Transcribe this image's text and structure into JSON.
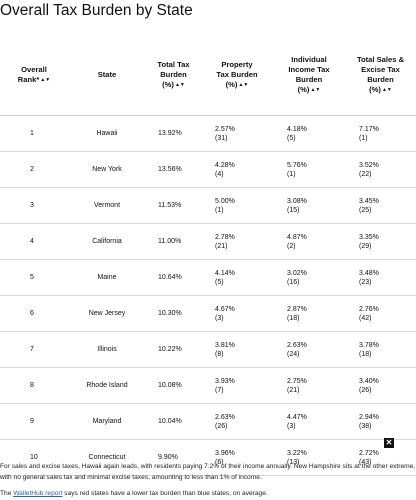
{
  "title": "Overall Tax Burden by State",
  "headers": {
    "rank": [
      "Overall",
      "Rank*"
    ],
    "state": "State",
    "total": [
      "Total Tax",
      "Burden",
      "(%)"
    ],
    "property": [
      "Property",
      "Tax Burden",
      "(%)"
    ],
    "income": [
      "Individual",
      "Income Tax",
      "Burden",
      "(%)"
    ],
    "sales": [
      "Total Sales &",
      "Excise Tax",
      "Burden",
      "(%)"
    ],
    "sort_icon": "sort-icon"
  },
  "rows": [
    {
      "rank": "1",
      "state": "Hawaii",
      "total": "13.92%",
      "property": "2.57%",
      "property_rank": "(31)",
      "income": "4.18%",
      "income_rank": "(5)",
      "sales": "7.17%",
      "sales_rank": "(1)"
    },
    {
      "rank": "2",
      "state": "New York",
      "total": "13.56%",
      "property": "4.28%",
      "property_rank": "(4)",
      "income": "5.76%",
      "income_rank": "(1)",
      "sales": "3.52%",
      "sales_rank": "(22)"
    },
    {
      "rank": "3",
      "state": "Vermont",
      "total": "11.53%",
      "property": "5.00%",
      "property_rank": "(1)",
      "income": "3.08%",
      "income_rank": "(15)",
      "sales": "3.45%",
      "sales_rank": "(25)"
    },
    {
      "rank": "4",
      "state": "California",
      "total": "11.00%",
      "property": "2.78%",
      "property_rank": "(21)",
      "income": "4.87%",
      "income_rank": "(2)",
      "sales": "3.35%",
      "sales_rank": "(29)"
    },
    {
      "rank": "5",
      "state": "Maine",
      "total": "10.64%",
      "property": "4.14%",
      "property_rank": "(5)",
      "income": "3.02%",
      "income_rank": "(16)",
      "sales": "3.48%",
      "sales_rank": "(23)"
    },
    {
      "rank": "6",
      "state": "New Jersey",
      "total": "10.30%",
      "property": "4.67%",
      "property_rank": "(3)",
      "income": "2.87%",
      "income_rank": "(18)",
      "sales": "2.76%",
      "sales_rank": "(42)"
    },
    {
      "rank": "7",
      "state": "Illinois",
      "total": "10.22%",
      "property": "3.81%",
      "property_rank": "(8)",
      "income": "2.63%",
      "income_rank": "(24)",
      "sales": "3.78%",
      "sales_rank": "(18)"
    },
    {
      "rank": "8",
      "state": "Rhode Island",
      "total": "10.08%",
      "property": "3.93%",
      "property_rank": "(7)",
      "income": "2.75%",
      "income_rank": "(21)",
      "sales": "3.40%",
      "sales_rank": "(26)"
    },
    {
      "rank": "9",
      "state": "Maryland",
      "total": "10.04%",
      "property": "2.63%",
      "property_rank": "(26)",
      "income": "4.47%",
      "income_rank": "(3)",
      "sales": "2.94%",
      "sales_rank": "(38)"
    },
    {
      "rank": "10",
      "state": "Connecticut",
      "total": "9.90%",
      "property": "3.96%",
      "property_rank": "(6)",
      "income": "3.22%",
      "income_rank": "(13)",
      "sales": "2.72%",
      "sales_rank": "(43)"
    }
  ],
  "close_icon": "close-icon",
  "note": "For sales and excise taxes, Hawaii again leads, with residents paying 7.2% of their income annually. New Hampshire sits at the other extreme, with no general sales tax and minimal excise taxes, amounting to less than 1% of income.",
  "source": {
    "prefix": "The ",
    "link": "WalletHub report",
    "suffix": " says red states have a lower tax burden than blue states, on average."
  }
}
